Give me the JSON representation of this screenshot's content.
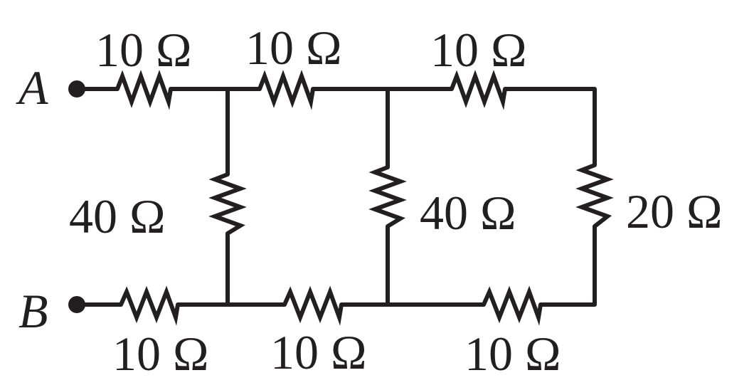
{
  "circuit": {
    "nodes": {
      "a": "A",
      "b": "B"
    },
    "resistors": {
      "top_left": "10 Ω",
      "top_middle": "10 Ω",
      "top_right": "10 Ω",
      "shunt_left": "40 Ω",
      "shunt_middle": "40 Ω",
      "shunt_right": "20 Ω",
      "bottom_left": "10 Ω",
      "bottom_middle": "10 Ω",
      "bottom_right": "10 Ω"
    }
  }
}
